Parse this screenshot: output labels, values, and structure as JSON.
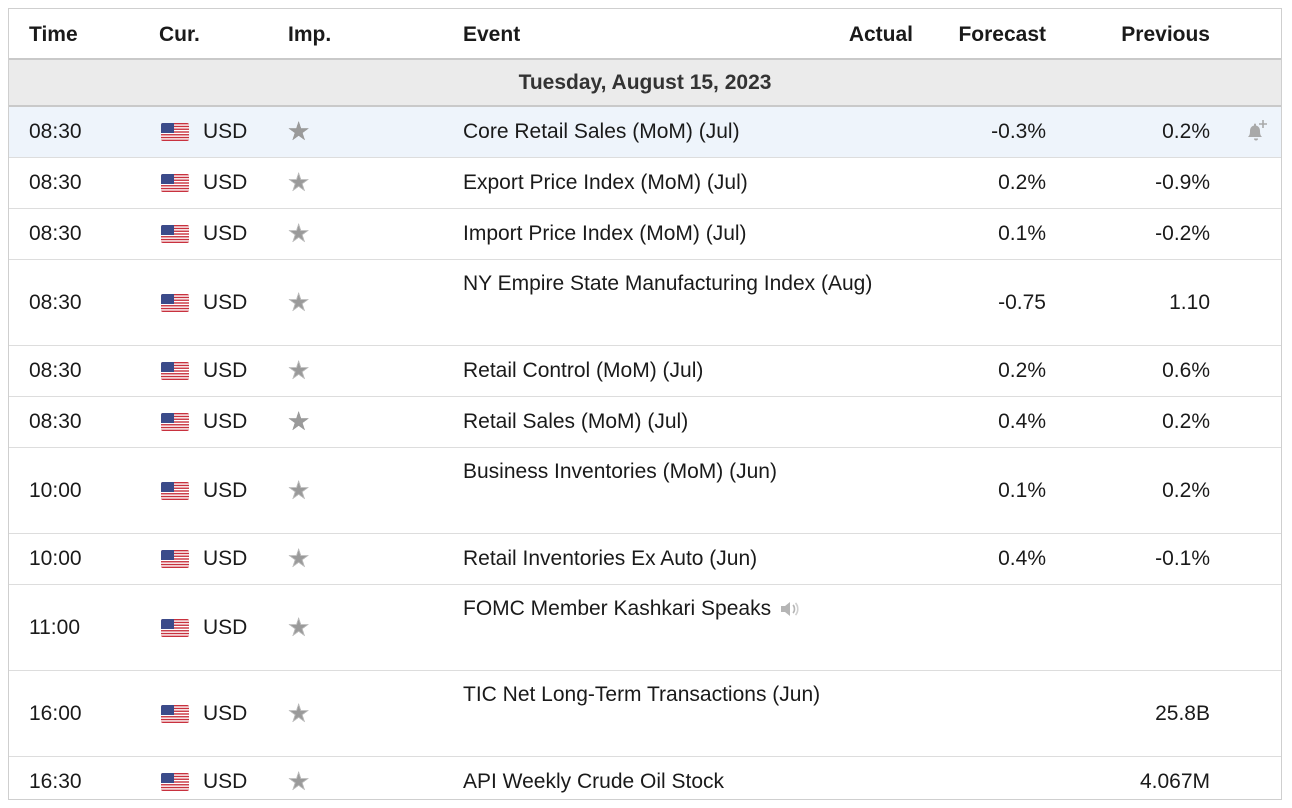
{
  "columns": {
    "time": "Time",
    "currency": "Cur.",
    "importance": "Imp.",
    "event": "Event",
    "actual": "Actual",
    "forecast": "Forecast",
    "previous": "Previous"
  },
  "day_label": "Tuesday, August 15, 2023",
  "icons": {
    "flag": "us-flag-icon",
    "star_filled": "star-filled-icon",
    "star_empty": "star-empty-icon",
    "alert": "bell-plus-icon",
    "speech": "speaker-icon"
  },
  "colors": {
    "highlight_row": "#eef4fb",
    "day_header_bg": "#ebebeb"
  },
  "events": [
    {
      "time": "08:30",
      "currency": "USD",
      "importance": 3,
      "event": "Core Retail Sales (MoM) (Jul)",
      "actual": "",
      "forecast": "-0.3%",
      "previous": "0.2%"
    },
    {
      "time": "08:30",
      "currency": "USD",
      "importance": 2,
      "event": "Export Price Index (MoM) (Jul)",
      "actual": "",
      "forecast": "0.2%",
      "previous": "-0.9%"
    },
    {
      "time": "08:30",
      "currency": "USD",
      "importance": 2,
      "event": "Import Price Index (MoM) (Jul)",
      "actual": "",
      "forecast": "0.1%",
      "previous": "-0.2%"
    },
    {
      "time": "08:30",
      "currency": "USD",
      "importance": 2,
      "event": "NY Empire State Manufacturing Index (Aug)",
      "actual": "",
      "forecast": "-0.75",
      "previous": "1.10"
    },
    {
      "time": "08:30",
      "currency": "USD",
      "importance": 2,
      "event": "Retail Control (MoM) (Jul)",
      "actual": "",
      "forecast": "0.2%",
      "previous": "0.6%"
    },
    {
      "time": "08:30",
      "currency": "USD",
      "importance": 3,
      "event": "Retail Sales (MoM) (Jul)",
      "actual": "",
      "forecast": "0.4%",
      "previous": "0.2%"
    },
    {
      "time": "10:00",
      "currency": "USD",
      "importance": 2,
      "event": "Business Inventories (MoM) (Jun)",
      "actual": "",
      "forecast": "0.1%",
      "previous": "0.2%"
    },
    {
      "time": "10:00",
      "currency": "USD",
      "importance": 2,
      "event": "Retail Inventories Ex Auto (Jun)",
      "actual": "",
      "forecast": "0.4%",
      "previous": "-0.1%"
    },
    {
      "time": "11:00",
      "currency": "USD",
      "importance": 2,
      "event": "FOMC Member Kashkari Speaks",
      "actual": "",
      "forecast": "",
      "previous": ""
    },
    {
      "time": "16:00",
      "currency": "USD",
      "importance": 2,
      "event": "TIC Net Long-Term Transactions (Jun)",
      "actual": "",
      "forecast": "",
      "previous": "25.8B"
    },
    {
      "time": "16:30",
      "currency": "USD",
      "importance": 2,
      "event": "API Weekly Crude Oil Stock",
      "actual": "",
      "forecast": "",
      "previous": "4.067M"
    }
  ]
}
